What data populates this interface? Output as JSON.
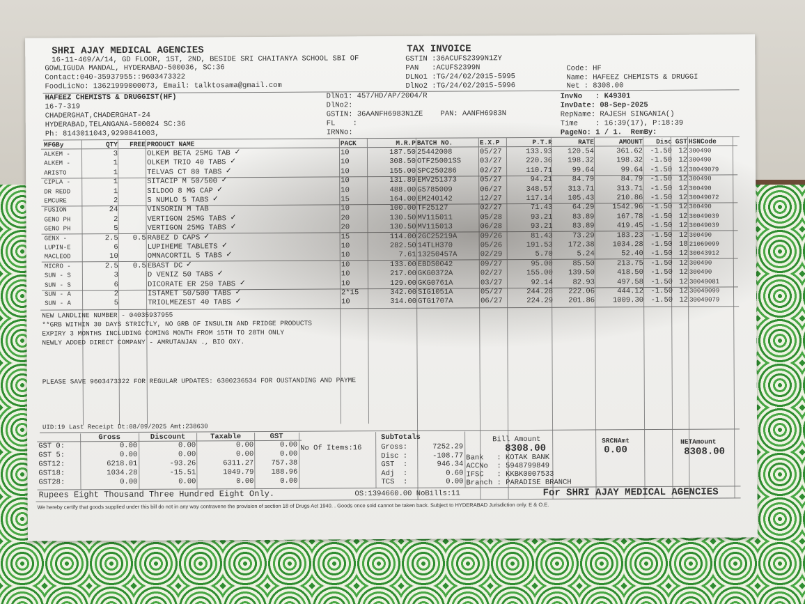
{
  "seller": {
    "name": "SHRI AJAY MEDICAL AGENCIES",
    "addr1": "16-11-469/A/14, GD FLOOR, 1ST, 2ND, BESIDE SRI CHAITANYA SCHOOL SBI OF",
    "addr2": "GOWLIGUDA MANDAL, HYDERABAD-500036, SC:36",
    "contact": "Contact:040-35937955::9603473322",
    "food": "FoodLicNo: 13621999000073, Email: talktosama@gmail.com"
  },
  "doc_title": "TAX INVOICE",
  "seller_ids": [
    "GSTIN :36ACUFS2399N1ZY",
    "PAN   :ACUFS2399N",
    "DLNo1 :TG/24/02/2015-5995",
    "DlNo2 :TG/24/02/2015-5996"
  ],
  "summary": {
    "code": "Code: HF",
    "name": "Name: HAFEEZ CHEMISTS & DRUGGI",
    "net": "Net :    8308.00"
  },
  "buyer": {
    "name": "HAFEEZ CHEMISTS & DRUGGIST(HF)",
    "addr1": "16-7-319",
    "addr2": "CHADERGHAT,CHADERGHAT-24",
    "addr3": "HYDERABAD,TELANGANA-500024 SC:36",
    "phone": "Ph: 8143011043,9290841003,"
  },
  "buyer_ids": [
    "DlNo1: 457/HD/AP/2004/R",
    "DlNo2:",
    "GSTIN: 36AANFH6983N1ZE    PAN: AANFH6983N",
    "FL    :",
    "IRNNo:"
  ],
  "invoice": [
    "InvNo   : K49301",
    "InvDate: 08-Sep-2025",
    "RepName: RAJESH SINGANIA()",
    "Time    : 16:39(17), P:18:39",
    "PageNo: 1 / 1.  RemBy:"
  ],
  "columns": [
    "MFGBy",
    "QTY",
    "FREE",
    "PRODUCT NAME",
    "PACK",
    "M.R.P",
    "BATCH NO.",
    "E.X.P",
    "P.T.R",
    "RATE",
    "AMOUNT",
    "Disc",
    "GST",
    "HSNCode"
  ],
  "items": [
    [
      "ALKEM -",
      "3",
      "",
      "OLKEM BETA 25MG TAB",
      "10",
      "187.50",
      "25442008",
      "05/27",
      "133.93",
      "120.54",
      "361.62",
      "-1.50",
      "12",
      "300490"
    ],
    [
      "ALKEM -",
      "1",
      "",
      "OLKEM TRIO 40 TABS",
      "10",
      "308.50",
      "OTF25001SS",
      "03/27",
      "220.36",
      "198.32",
      "198.32",
      "-1.50",
      "12",
      "300490"
    ],
    [
      "ARISTO",
      "1",
      "",
      "TELVAS CT 80 TABS",
      "10",
      "155.00",
      "SPC250286",
      "02/27",
      "110.71",
      "99.64",
      "99.64",
      "-1.50",
      "12",
      "30049079"
    ],
    [
      "CIPLA -",
      "1",
      "",
      "SITACIP M 50/500",
      "10",
      "131.89",
      "EMV251373",
      "05/27",
      "94.21",
      "84.79",
      "84.79",
      "-1.50",
      "12",
      "300490"
    ],
    [
      "DR REDD",
      "1",
      "",
      "SILDOO 8 MG CAP",
      "10",
      "488.00",
      "G5785009",
      "06/27",
      "348.57",
      "313.71",
      "313.71",
      "-1.50",
      "12",
      "300490"
    ],
    [
      "EMCURE",
      "2",
      "",
      "S NUMLO 5 TABS",
      "15",
      "164.00",
      "EM240142",
      "12/27",
      "117.14",
      "105.43",
      "210.86",
      "-1.50",
      "12",
      "30049072"
    ],
    [
      "FUSION",
      "24",
      "",
      "VINSORIN M TAB",
      "10",
      "100.00",
      "TF25127",
      "02/27",
      "71.43",
      "64.29",
      "1542.96",
      "-1.50",
      "12",
      "300490"
    ],
    [
      "GENO PH",
      "2",
      "",
      "VERTIGON 25MG TABS",
      "20",
      "130.50",
      "MV115011",
      "05/28",
      "93.21",
      "83.89",
      "167.78",
      "-1.50",
      "12",
      "30049039"
    ],
    [
      "GENO PH",
      "5",
      "",
      "VERTIGON 25MG TABS",
      "20",
      "130.50",
      "MV115013",
      "06/28",
      "93.21",
      "83.89",
      "419.45",
      "-1.50",
      "12",
      "30049039"
    ],
    [
      "GENX -",
      "2.5",
      "0.5",
      "RABEZ D CAPS",
      "15",
      "114.00",
      "2GC25219A",
      "09/26",
      "81.43",
      "73.29",
      "183.23",
      "-1.50",
      "12",
      "300490"
    ],
    [
      "LUPIN-E",
      "6",
      "",
      "LUPIHEME TABLETS",
      "10",
      "282.50",
      "14TLH370",
      "05/26",
      "191.53",
      "172.38",
      "1034.28",
      "-1.50",
      "18",
      "21069099"
    ],
    [
      "MACLEOD",
      "10",
      "",
      "OMNACORTIL 5 TABS",
      "10",
      "7.61",
      "13250457A",
      "02/29",
      "5.70",
      "5.24",
      "52.40",
      "-1.50",
      "12",
      "30043912"
    ],
    [
      "MICRO -",
      "2.5",
      "0.5",
      "EBAST DC",
      "10",
      "133.00",
      "EBDS0042",
      "09/27",
      "95.00",
      "85.50",
      "213.75",
      "-1.50",
      "12",
      "300490"
    ],
    [
      "SUN - S",
      "3",
      "",
      "D VENIZ 50 TABS",
      "10",
      "217.00",
      "GKG0372A",
      "02/27",
      "155.00",
      "139.50",
      "418.50",
      "-1.50",
      "12",
      "300490"
    ],
    [
      "SUN - S",
      "6",
      "",
      "DICORATE ER 250 TABS",
      "10",
      "129.00",
      "GKG0761A",
      "03/27",
      "92.14",
      "82.93",
      "497.58",
      "-1.50",
      "12",
      "30049081"
    ],
    [
      "SUN - A",
      "2",
      "",
      "ISTAMET 50/500 TABS",
      "2*15",
      "342.00",
      "SIG1051A",
      "05/27",
      "244.28",
      "222.06",
      "444.12",
      "-1.50",
      "12",
      "30049099"
    ],
    [
      "SUN - A",
      "5",
      "",
      "TRIOLMEZEST 40 TABS",
      "10",
      "314.00",
      "GTG1707A",
      "06/27",
      "224.29",
      "201.86",
      "1009.30",
      "-1.50",
      "12",
      "30049079"
    ]
  ],
  "notes": [
    "NEW LANDLINE NUMBER - 04035937955",
    "**GRB WITHIN 30 DAYS STRICTLY, NO GRB OF INSULIN AND FRIDGE PRODUCTS",
    "EXPIRY 3 MONTHS INCLUDING COMING MONTH FROM 15TH TO 28TH ONLY",
    "NEWLY ADDED DIRECT COMPANY - AMRUTANJAN .,  BIO OXY.",
    "PLEASE SAVE 9603473322 FOR REGULAR UPDATES:  6300236534 FOR OUSTANDING AND PAYME"
  ],
  "last_receipt": "UID:19 Last Receipt Dt:08/09/2025   Amt:238630",
  "gst_table": {
    "headers": [
      "Gross",
      "Discount",
      "Taxable",
      "GST"
    ],
    "rows": [
      [
        "GST 0:",
        "0.00",
        "0.00",
        "0.00",
        "0.00"
      ],
      [
        "GST 5:",
        "0.00",
        "0.00",
        "0.00",
        "0.00"
      ],
      [
        "GST12:",
        "6218.01",
        "-93.26",
        "6311.27",
        "757.38"
      ],
      [
        "GST18:",
        "1034.28",
        "-15.51",
        "1049.79",
        "188.96"
      ],
      [
        "GST28:",
        "0.00",
        "0.00",
        "0.00",
        "0.00"
      ]
    ]
  },
  "items_count": "No Of Items:16",
  "subtotals": {
    "title": "SubTotals",
    "rows": [
      [
        "Gross:",
        "7252.29"
      ],
      [
        "Disc :",
        "-108.77"
      ],
      [
        "GST  :",
        "946.34"
      ],
      [
        "Adj  :",
        "0.60"
      ],
      [
        "TCS  :",
        "0.00"
      ]
    ]
  },
  "bill": {
    "title": "Bill Amount",
    "amount": "8308.00",
    "bank": [
      "Bank   : KOTAK BANK",
      "ACCNo  : 5948799849",
      "IFSC   : KKBK0007533",
      "Branch : PARADISE BRANCH"
    ]
  },
  "srcn": {
    "label": "SRCNAmt",
    "value": "0.00"
  },
  "net": {
    "label": "NETAmount",
    "value": "8308.00"
  },
  "words": "Rupees Eight Thousand Three Hundred Eight Only.",
  "os": "OS:1394660.00  NoBills:11",
  "for_line": "For SHRI AJAY MEDICAL AGENCIES",
  "declaration": "We hereby certify that goods supplied under this bill do not in any way contravene the provision of section 18 of Drugs Act 1940. . Goods once sold cannot be taken back. Subject to HYDERABAD Jurisdiction only.  E & O.E."
}
